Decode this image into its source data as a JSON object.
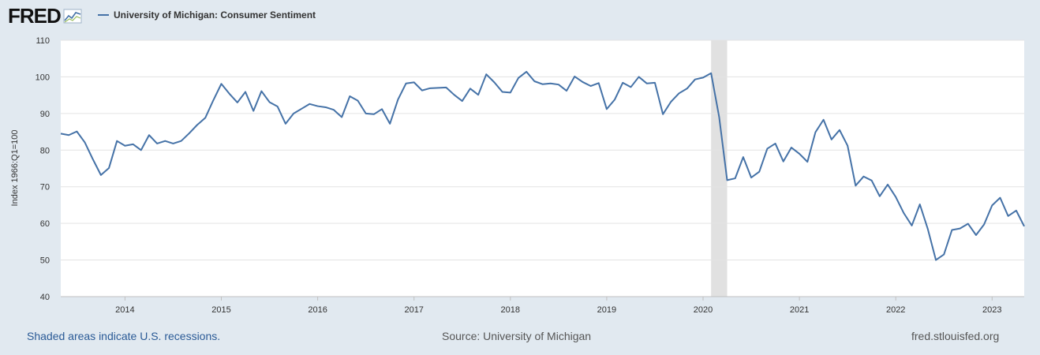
{
  "header": {
    "logo_text": "FRED",
    "series_label": "University of Michigan: Consumer Sentiment"
  },
  "footer": {
    "recession_note": "Shaded areas indicate U.S. recessions.",
    "source": "Source: University of Michigan",
    "site": "fred.stlouisfed.org"
  },
  "colors": {
    "line": "#4572a7",
    "recession": "#e1e1e1",
    "grid": "#e3e3e3",
    "background": "#e1e9f0"
  },
  "chart_data": {
    "type": "line",
    "title": "University of Michigan: Consumer Sentiment",
    "xlabel": "",
    "ylabel": "Index 1966:Q1=100",
    "ylim": [
      40,
      110
    ],
    "yticks": [
      40,
      50,
      60,
      70,
      80,
      90,
      100,
      110
    ],
    "xticks": [
      "2014",
      "2015",
      "2016",
      "2017",
      "2018",
      "2019",
      "2020",
      "2021",
      "2022",
      "2023"
    ],
    "x_start": "2013-05",
    "x_end": "2023-05",
    "grid": true,
    "legend": "top-left",
    "recessions": [
      {
        "start": "2020-02",
        "end": "2020-04"
      }
    ],
    "series": [
      {
        "name": "University of Michigan: Consumer Sentiment",
        "frequency": "monthly",
        "start": "2013-05",
        "values": [
          84.5,
          84.1,
          85.1,
          82.1,
          77.5,
          73.2,
          75.1,
          82.5,
          81.2,
          81.6,
          80.0,
          84.1,
          81.8,
          82.5,
          81.8,
          82.5,
          84.6,
          86.9,
          88.8,
          93.6,
          98.1,
          95.4,
          93.0,
          95.9,
          90.7,
          96.1,
          93.1,
          91.9,
          87.2,
          90.0,
          91.3,
          92.6,
          92.0,
          91.7,
          91.0,
          89.0,
          94.7,
          93.5,
          90.0,
          89.8,
          91.2,
          87.2,
          93.8,
          98.2,
          98.5,
          96.3,
          96.9,
          97.0,
          97.1,
          95.1,
          93.4,
          96.8,
          95.1,
          100.7,
          98.5,
          95.9,
          95.7,
          99.7,
          101.4,
          98.8,
          98.0,
          98.2,
          97.9,
          96.2,
          100.1,
          98.6,
          97.5,
          98.3,
          91.2,
          93.8,
          98.4,
          97.2,
          100.0,
          98.2,
          98.4,
          89.8,
          93.2,
          95.5,
          96.8,
          99.3,
          99.8,
          101.0,
          89.1,
          71.8,
          72.3,
          78.1,
          72.5,
          74.1,
          80.4,
          81.8,
          76.9,
          80.7,
          79.0,
          76.8,
          84.9,
          88.3,
          82.9,
          85.5,
          81.2,
          70.3,
          72.8,
          71.7,
          67.4,
          70.6,
          67.2,
          62.8,
          59.4,
          65.2,
          58.4,
          50.0,
          51.5,
          58.2,
          58.6,
          59.9,
          56.8,
          59.7,
          64.9,
          67.0,
          62.0,
          63.5,
          59.2
        ]
      }
    ]
  }
}
